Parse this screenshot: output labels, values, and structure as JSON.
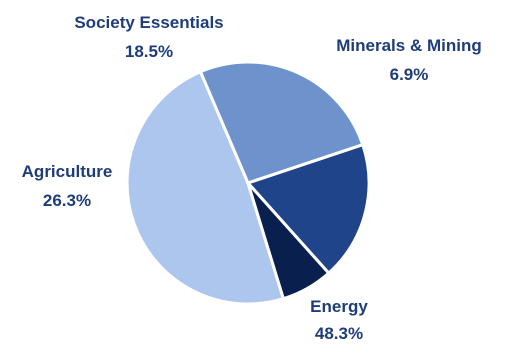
{
  "chart_data": {
    "type": "pie",
    "title": "",
    "slices": [
      {
        "label": "Energy",
        "value": 48.3,
        "value_text": "48.3%",
        "color": "#adc6ee"
      },
      {
        "label": "Agriculture",
        "value": 26.3,
        "value_text": "26.3%",
        "color": "#6e93cc"
      },
      {
        "label": "Society Essentials",
        "value": 18.5,
        "value_text": "18.5%",
        "color": "#1f4489"
      },
      {
        "label": "Minerals & Mining",
        "value": 6.9,
        "value_text": "6.9%",
        "color": "#09204f"
      }
    ],
    "start_angle_deg": 73,
    "direction": "clockwise",
    "legend": "none",
    "separator_color": "#ffffff"
  }
}
